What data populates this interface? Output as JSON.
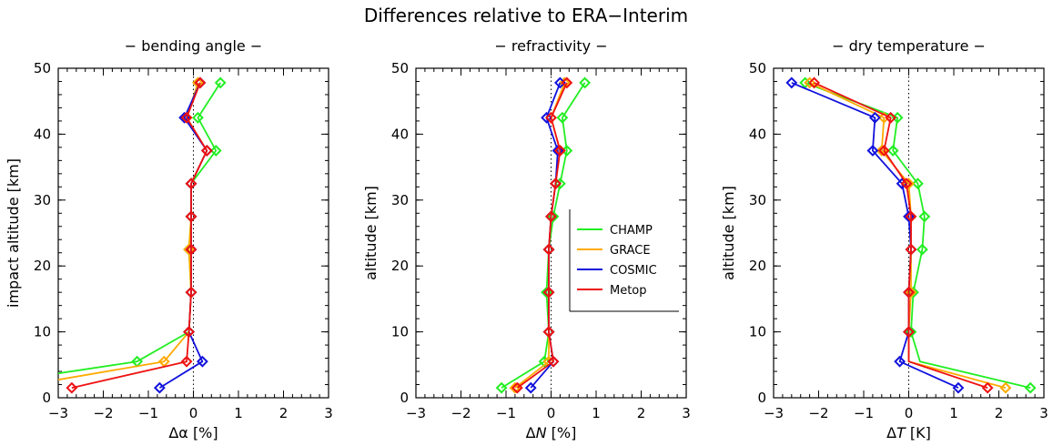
{
  "title": "Differences relative to ERA−Interim",
  "chart_data": [
    {
      "type": "line",
      "title": "− bending angle −",
      "xlabel": "Δα [%]",
      "ylabel": "impact altitude [km]",
      "xlim": [
        -3,
        3
      ],
      "ylim": [
        0,
        50
      ],
      "x_ticks": [
        "−3",
        "−2",
        "−1",
        "0",
        "1",
        "2",
        "3"
      ],
      "y_ticks": [
        "0",
        "10",
        "20",
        "30",
        "40",
        "50"
      ],
      "zero_line": true,
      "series": [
        {
          "name": "CHAMP",
          "color": "#22ee22",
          "points": [
            [
              -3.2,
              3.5
            ],
            [
              -1.25,
              5.5
            ],
            [
              -0.1,
              10
            ],
            [
              -0.05,
              16
            ],
            [
              -0.1,
              22.5
            ],
            [
              -0.05,
              27.5
            ],
            [
              -0.05,
              32.5
            ],
            [
              0.5,
              37.5
            ],
            [
              0.1,
              42.5
            ],
            [
              0.6,
              47.8
            ]
          ],
          "markers": [
            [
              -1.25,
              5.5
            ],
            [
              -0.1,
              10
            ],
            [
              -0.05,
              16
            ],
            [
              -0.1,
              22.5
            ],
            [
              -0.05,
              27.5
            ],
            [
              -0.05,
              32.5
            ],
            [
              0.5,
              37.5
            ],
            [
              0.1,
              42.5
            ],
            [
              0.6,
              47.8
            ]
          ]
        },
        {
          "name": "GRACE",
          "color": "#ffaa00",
          "points": [
            [
              -3.2,
              2.5
            ],
            [
              -0.65,
              5.5
            ],
            [
              -0.1,
              10
            ],
            [
              -0.05,
              16
            ],
            [
              -0.1,
              22.5
            ],
            [
              -0.05,
              27.5
            ],
            [
              -0.05,
              32.5
            ],
            [
              0.3,
              37.5
            ],
            [
              -0.15,
              42.5
            ],
            [
              0.1,
              47.8
            ]
          ],
          "markers": [
            [
              -0.65,
              5.5
            ],
            [
              -0.1,
              10
            ],
            [
              -0.05,
              16
            ],
            [
              -0.1,
              22.5
            ],
            [
              -0.05,
              27.5
            ],
            [
              -0.05,
              32.5
            ],
            [
              0.3,
              37.5
            ],
            [
              -0.15,
              42.5
            ],
            [
              0.1,
              47.8
            ]
          ]
        },
        {
          "name": "COSMIC",
          "color": "#1111dd",
          "points": [
            [
              -0.75,
              1.5
            ],
            [
              0.2,
              5.5
            ],
            [
              -0.1,
              10
            ],
            [
              -0.05,
              16
            ],
            [
              -0.05,
              22.5
            ],
            [
              -0.05,
              27.5
            ],
            [
              -0.05,
              32.5
            ],
            [
              0.3,
              37.5
            ],
            [
              -0.2,
              42.5
            ],
            [
              0.15,
              47.8
            ]
          ],
          "markers": [
            [
              -0.75,
              1.5
            ],
            [
              0.2,
              5.5
            ],
            [
              -0.1,
              10
            ],
            [
              -0.05,
              16
            ],
            [
              -0.05,
              22.5
            ],
            [
              -0.05,
              27.5
            ],
            [
              -0.05,
              32.5
            ],
            [
              0.3,
              37.5
            ],
            [
              -0.2,
              42.5
            ],
            [
              0.15,
              47.8
            ]
          ]
        },
        {
          "name": "Metop",
          "color": "#ee1111",
          "points": [
            [
              -2.7,
              1.5
            ],
            [
              -0.15,
              5.5
            ],
            [
              -0.1,
              10
            ],
            [
              -0.05,
              16
            ],
            [
              -0.05,
              22.5
            ],
            [
              -0.05,
              27.5
            ],
            [
              -0.05,
              32.5
            ],
            [
              0.3,
              37.5
            ],
            [
              -0.15,
              42.5
            ],
            [
              0.15,
              47.8
            ]
          ],
          "markers": [
            [
              -2.7,
              1.5
            ],
            [
              -0.15,
              5.5
            ],
            [
              -0.1,
              10
            ],
            [
              -0.05,
              16
            ],
            [
              -0.05,
              22.5
            ],
            [
              -0.05,
              27.5
            ],
            [
              -0.05,
              32.5
            ],
            [
              0.3,
              37.5
            ],
            [
              -0.15,
              42.5
            ],
            [
              0.15,
              47.8
            ]
          ]
        }
      ]
    },
    {
      "type": "line",
      "title": "− refractivity −",
      "xlabel": "ΔN [%]",
      "ylabel": "altitude [km]",
      "xlim": [
        -3,
        3
      ],
      "ylim": [
        0,
        50
      ],
      "x_ticks": [
        "−3",
        "−2",
        "−1",
        "0",
        "1",
        "2",
        "3"
      ],
      "y_ticks": [
        "0",
        "10",
        "20",
        "30",
        "40",
        "50"
      ],
      "zero_line": true,
      "legend": {
        "position": "center-right",
        "entries": [
          "CHAMP",
          "GRACE",
          "COSMIC",
          "Metop"
        ]
      },
      "series": [
        {
          "name": "CHAMP",
          "color": "#22ee22",
          "points": [
            [
              -1.1,
              1.5
            ],
            [
              -0.15,
              5.5
            ],
            [
              -0.05,
              10
            ],
            [
              -0.1,
              16
            ],
            [
              -0.05,
              22.5
            ],
            [
              0.05,
              27.5
            ],
            [
              0.2,
              32.5
            ],
            [
              0.35,
              37.5
            ],
            [
              0.25,
              42.5
            ],
            [
              0.75,
              47.8
            ]
          ],
          "markers": [
            [
              -1.1,
              1.5
            ],
            [
              -0.15,
              5.5
            ],
            [
              -0.05,
              10
            ],
            [
              -0.1,
              16
            ],
            [
              -0.05,
              22.5
            ],
            [
              0.05,
              27.5
            ],
            [
              0.2,
              32.5
            ],
            [
              0.35,
              37.5
            ],
            [
              0.25,
              42.5
            ],
            [
              0.75,
              47.8
            ]
          ]
        },
        {
          "name": "GRACE",
          "color": "#ffaa00",
          "points": [
            [
              -0.8,
              1.5
            ],
            [
              -0.05,
              5.5
            ],
            [
              -0.05,
              10
            ],
            [
              -0.05,
              16
            ],
            [
              -0.05,
              22.5
            ],
            [
              0.0,
              27.5
            ],
            [
              0.1,
              32.5
            ],
            [
              0.2,
              37.5
            ],
            [
              0.0,
              42.5
            ],
            [
              0.3,
              47.8
            ]
          ],
          "markers": [
            [
              -0.8,
              1.5
            ],
            [
              -0.05,
              5.5
            ],
            [
              -0.05,
              10
            ],
            [
              -0.05,
              16
            ],
            [
              -0.05,
              22.5
            ],
            [
              0.0,
              27.5
            ],
            [
              0.1,
              32.5
            ],
            [
              0.2,
              37.5
            ],
            [
              0.0,
              42.5
            ],
            [
              0.3,
              47.8
            ]
          ]
        },
        {
          "name": "COSMIC",
          "color": "#1111dd",
          "points": [
            [
              -0.45,
              1.5
            ],
            [
              0.05,
              5.5
            ],
            [
              -0.05,
              10
            ],
            [
              -0.05,
              16
            ],
            [
              -0.05,
              22.5
            ],
            [
              0.0,
              27.5
            ],
            [
              0.1,
              32.5
            ],
            [
              0.15,
              37.5
            ],
            [
              -0.1,
              42.5
            ],
            [
              0.2,
              47.8
            ]
          ],
          "markers": [
            [
              -0.45,
              1.5
            ],
            [
              0.05,
              5.5
            ],
            [
              -0.05,
              10
            ],
            [
              -0.05,
              16
            ],
            [
              -0.05,
              22.5
            ],
            [
              0.0,
              27.5
            ],
            [
              0.1,
              32.5
            ],
            [
              0.15,
              37.5
            ],
            [
              -0.1,
              42.5
            ],
            [
              0.2,
              47.8
            ]
          ]
        },
        {
          "name": "Metop",
          "color": "#ee1111",
          "points": [
            [
              -0.75,
              1.5
            ],
            [
              0.05,
              5.5
            ],
            [
              -0.05,
              10
            ],
            [
              -0.05,
              16
            ],
            [
              -0.05,
              22.5
            ],
            [
              0.0,
              27.5
            ],
            [
              0.1,
              32.5
            ],
            [
              0.2,
              37.5
            ],
            [
              0.0,
              42.5
            ],
            [
              0.35,
              47.8
            ]
          ],
          "markers": [
            [
              -0.75,
              1.5
            ],
            [
              0.05,
              5.5
            ],
            [
              -0.05,
              10
            ],
            [
              -0.05,
              16
            ],
            [
              -0.05,
              22.5
            ],
            [
              0.0,
              27.5
            ],
            [
              0.1,
              32.5
            ],
            [
              0.2,
              37.5
            ],
            [
              0.0,
              42.5
            ],
            [
              0.35,
              47.8
            ]
          ]
        }
      ]
    },
    {
      "type": "line",
      "title": "− dry temperature −",
      "xlabel": "ΔT [K]",
      "ylabel": "altitude [km]",
      "xlim": [
        -3,
        3
      ],
      "ylim": [
        0,
        50
      ],
      "x_ticks": [
        "−3",
        "−2",
        "−1",
        "0",
        "1",
        "2",
        "3"
      ],
      "y_ticks": [
        "0",
        "10",
        "20",
        "30",
        "40",
        "50"
      ],
      "zero_line": true,
      "series": [
        {
          "name": "CHAMP",
          "color": "#22ee22",
          "points": [
            [
              2.7,
              1.5
            ],
            [
              0.25,
              5.5
            ],
            [
              0.05,
              10
            ],
            [
              0.1,
              16
            ],
            [
              0.3,
              22.5
            ],
            [
              0.35,
              27.5
            ],
            [
              0.2,
              32.5
            ],
            [
              -0.35,
              37.5
            ],
            [
              -0.25,
              42.5
            ],
            [
              -2.3,
              47.8
            ]
          ],
          "markers": [
            [
              2.7,
              1.5
            ],
            [
              0.05,
              10
            ],
            [
              0.1,
              16
            ],
            [
              0.3,
              22.5
            ],
            [
              0.35,
              27.5
            ],
            [
              0.2,
              32.5
            ],
            [
              -0.35,
              37.5
            ],
            [
              -0.25,
              42.5
            ],
            [
              -2.3,
              47.8
            ]
          ]
        },
        {
          "name": "GRACE",
          "color": "#ffaa00",
          "points": [
            [
              2.15,
              1.5
            ],
            [
              0.0,
              5.5
            ],
            [
              0.0,
              10
            ],
            [
              0.05,
              16
            ],
            [
              0.05,
              22.5
            ],
            [
              0.05,
              27.5
            ],
            [
              0.0,
              32.5
            ],
            [
              -0.6,
              37.5
            ],
            [
              -0.55,
              42.5
            ],
            [
              -2.2,
              47.8
            ]
          ],
          "markers": [
            [
              2.15,
              1.5
            ],
            [
              0.0,
              10
            ],
            [
              0.05,
              16
            ],
            [
              0.05,
              22.5
            ],
            [
              0.05,
              27.5
            ],
            [
              0.0,
              32.5
            ],
            [
              -0.6,
              37.5
            ],
            [
              -0.55,
              42.5
            ],
            [
              -2.2,
              47.8
            ]
          ]
        },
        {
          "name": "COSMIC",
          "color": "#1111dd",
          "points": [
            [
              1.1,
              1.5
            ],
            [
              -0.2,
              5.5
            ],
            [
              0.0,
              10
            ],
            [
              0.0,
              16
            ],
            [
              0.05,
              22.5
            ],
            [
              0.0,
              27.5
            ],
            [
              -0.15,
              32.5
            ],
            [
              -0.8,
              37.5
            ],
            [
              -0.75,
              42.5
            ],
            [
              -2.6,
              47.8
            ]
          ],
          "markers": [
            [
              1.1,
              1.5
            ],
            [
              -0.2,
              5.5
            ],
            [
              0.0,
              10
            ],
            [
              0.0,
              16
            ],
            [
              0.05,
              22.5
            ],
            [
              0.0,
              27.5
            ],
            [
              -0.15,
              32.5
            ],
            [
              -0.8,
              37.5
            ],
            [
              -0.75,
              42.5
            ],
            [
              -2.6,
              47.8
            ]
          ]
        },
        {
          "name": "Metop",
          "color": "#ee1111",
          "points": [
            [
              1.75,
              1.5
            ],
            [
              0.0,
              5.5
            ],
            [
              0.0,
              10
            ],
            [
              0.0,
              16
            ],
            [
              0.05,
              22.5
            ],
            [
              0.05,
              27.5
            ],
            [
              -0.05,
              32.5
            ],
            [
              -0.55,
              37.5
            ],
            [
              -0.4,
              42.5
            ],
            [
              -2.1,
              47.8
            ]
          ],
          "markers": [
            [
              1.75,
              1.5
            ],
            [
              0.0,
              10
            ],
            [
              0.0,
              16
            ],
            [
              0.05,
              22.5
            ],
            [
              0.05,
              27.5
            ],
            [
              -0.05,
              32.5
            ],
            [
              -0.55,
              37.5
            ],
            [
              -0.4,
              42.5
            ],
            [
              -2.1,
              47.8
            ]
          ]
        }
      ]
    }
  ]
}
